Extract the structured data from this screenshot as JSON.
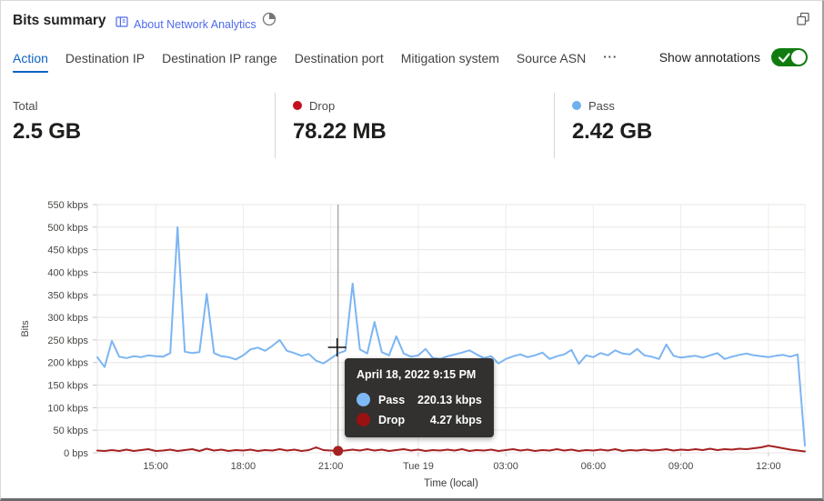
{
  "header": {
    "title": "Bits summary",
    "about_link": "About Network Analytics"
  },
  "tabs": {
    "items": [
      {
        "label": "Action",
        "active": true
      },
      {
        "label": "Destination IP",
        "active": false
      },
      {
        "label": "Destination IP range",
        "active": false
      },
      {
        "label": "Destination port",
        "active": false
      },
      {
        "label": "Mitigation system",
        "active": false
      },
      {
        "label": "Source ASN",
        "active": false
      },
      {
        "label": "···",
        "active": false
      }
    ]
  },
  "annotations": {
    "label": "Show annotations",
    "enabled": true,
    "toggle_color": "#107c10"
  },
  "stats": [
    {
      "label": "Total",
      "value": "2.5 GB",
      "dot": null
    },
    {
      "label": "Drop",
      "value": "78.22 MB",
      "dot": "#c50f1f"
    },
    {
      "label": "Pass",
      "value": "2.42 GB",
      "dot": "#6fb1f0"
    }
  ],
  "chart_data": {
    "type": "line",
    "title": "Bits summary",
    "xlabel": "Time (local)",
    "ylabel": "Bits",
    "ylim": [
      0,
      550
    ],
    "grid": true,
    "x_start_hour": 13.0,
    "x_step_hours": 0.25,
    "x_ticks": [
      {
        "t": 15,
        "label": "15:00"
      },
      {
        "t": 18,
        "label": "18:00"
      },
      {
        "t": 21,
        "label": "21:00"
      },
      {
        "t": 24,
        "label": "Tue 19"
      },
      {
        "t": 27,
        "label": "03:00"
      },
      {
        "t": 30,
        "label": "06:00"
      },
      {
        "t": 33,
        "label": "09:00"
      },
      {
        "t": 36,
        "label": "12:00"
      }
    ],
    "y_ticks": [
      {
        "v": 0,
        "label": "0 bps"
      },
      {
        "v": 50,
        "label": "50 kbps"
      },
      {
        "v": 100,
        "label": "100 kbps"
      },
      {
        "v": 150,
        "label": "150 kbps"
      },
      {
        "v": 200,
        "label": "200 kbps"
      },
      {
        "v": 250,
        "label": "250 kbps"
      },
      {
        "v": 300,
        "label": "300 kbps"
      },
      {
        "v": 350,
        "label": "350 kbps"
      },
      {
        "v": 400,
        "label": "400 kbps"
      },
      {
        "v": 450,
        "label": "450 kbps"
      },
      {
        "v": 500,
        "label": "500 kbps"
      },
      {
        "v": 550,
        "label": "550 kbps"
      }
    ],
    "series": [
      {
        "name": "Pass",
        "color": "#7cb5f2",
        "unit": "kbps",
        "values": [
          212,
          190,
          248,
          213,
          210,
          214,
          212,
          216,
          214,
          213,
          221,
          500,
          224,
          221,
          223,
          352,
          221,
          214,
          212,
          207,
          216,
          229,
          233,
          226,
          237,
          250,
          226,
          221,
          215,
          219,
          204,
          198,
          209,
          220.13,
          226,
          375,
          229,
          220,
          290,
          223,
          216,
          258,
          220,
          213,
          216,
          230,
          210,
          208,
          214,
          218,
          222,
          227,
          218,
          210,
          214,
          198,
          208,
          214,
          218,
          212,
          216,
          222,
          208,
          214,
          218,
          228,
          197,
          216,
          212,
          221,
          216,
          227,
          220,
          218,
          230,
          216,
          213,
          208,
          240,
          215,
          211,
          213,
          215,
          211,
          216,
          221,
          208,
          213,
          217,
          220,
          216,
          214,
          212,
          215,
          217,
          213,
          218,
          16
        ]
      },
      {
        "name": "Drop",
        "color": "#a52121",
        "unit": "kbps",
        "values": [
          5,
          4,
          6,
          4,
          7,
          4,
          6,
          8,
          4,
          5,
          7,
          4,
          6,
          8,
          4,
          9,
          5,
          7,
          4,
          6,
          5,
          7,
          4,
          6,
          5,
          8,
          5,
          7,
          4,
          6,
          12,
          6,
          5,
          4.27,
          5,
          7,
          5,
          8,
          5,
          7,
          4,
          6,
          8,
          5,
          7,
          4,
          6,
          5,
          7,
          5,
          8,
          4,
          6,
          5,
          7,
          4,
          6,
          8,
          5,
          7,
          4,
          6,
          5,
          8,
          5,
          7,
          4,
          6,
          5,
          7,
          5,
          8,
          4,
          6,
          5,
          7,
          5,
          6,
          8,
          5,
          7,
          6,
          8,
          6,
          9,
          6,
          8,
          7,
          9,
          8,
          10,
          12,
          16,
          13,
          10,
          7,
          5,
          3
        ]
      }
    ],
    "hover": {
      "t": 21.25,
      "tooltip": {
        "title": "April 18, 2022 9:15 PM",
        "rows": [
          {
            "label": "Pass",
            "value": "220.13 kbps",
            "color": "#7fb9f5"
          },
          {
            "label": "Drop",
            "value": "4.27 kbps",
            "color": "#991111"
          }
        ]
      }
    }
  }
}
